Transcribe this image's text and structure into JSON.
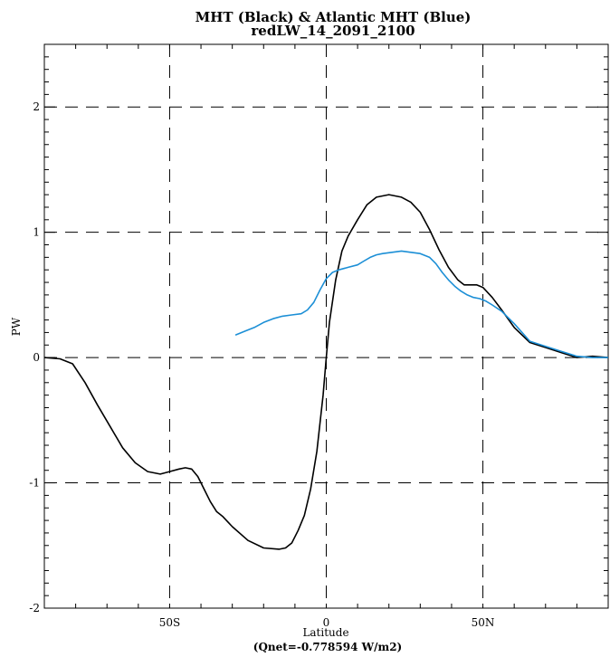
{
  "chart_data": {
    "type": "line",
    "title": "MHT (Black) & Atlantic MHT (Blue)",
    "subtitle": "redLW_14_2091_2100",
    "xlabel": "Latitude",
    "ylabel": "PW",
    "note": "(Qnet=-0.778594 W/m2)",
    "xlim": [
      -90,
      90
    ],
    "ylim": [
      -2,
      2.5
    ],
    "grid": true,
    "x_ticks": [
      {
        "value": -50,
        "label": "50S"
      },
      {
        "value": 0,
        "label": "0"
      },
      {
        "value": 50,
        "label": "50N"
      }
    ],
    "y_ticks": [
      {
        "value": -2,
        "label": "-2"
      },
      {
        "value": -1,
        "label": "-1"
      },
      {
        "value": 0,
        "label": "0"
      },
      {
        "value": 1,
        "label": "1"
      },
      {
        "value": 2,
        "label": "2"
      }
    ],
    "series": [
      {
        "color": "#000000",
        "x": [
          -90,
          -85,
          -81,
          -77,
          -73,
          -69,
          -65,
          -61,
          -57,
          -53,
          -50,
          -47,
          -45,
          -43,
          -41,
          -39,
          -37,
          -35,
          -33,
          -30,
          -25,
          -20,
          -15,
          -13,
          -11,
          -9,
          -7,
          -5,
          -3,
          -1,
          0,
          1,
          3,
          5,
          7,
          10,
          13,
          16,
          20,
          24,
          27,
          30,
          33,
          36,
          39,
          42,
          44,
          46,
          48,
          50,
          53,
          56,
          60,
          65,
          70,
          75,
          80,
          85,
          90
        ],
        "y": [
          0.0,
          -0.01,
          -0.05,
          -0.2,
          -0.38,
          -0.55,
          -0.72,
          -0.84,
          -0.91,
          -0.93,
          -0.91,
          -0.89,
          -0.88,
          -0.89,
          -0.95,
          -1.05,
          -1.15,
          -1.23,
          -1.27,
          -1.35,
          -1.46,
          -1.52,
          -1.53,
          -1.52,
          -1.48,
          -1.38,
          -1.26,
          -1.05,
          -0.75,
          -0.3,
          0.0,
          0.28,
          0.62,
          0.85,
          0.97,
          1.1,
          1.22,
          1.28,
          1.3,
          1.28,
          1.24,
          1.16,
          1.02,
          0.86,
          0.72,
          0.62,
          0.58,
          0.58,
          0.58,
          0.56,
          0.48,
          0.38,
          0.24,
          0.12,
          0.08,
          0.04,
          0.0,
          0.01,
          0.0
        ]
      },
      {
        "color": "#1c8fd6",
        "x": [
          -29,
          -26,
          -23,
          -20,
          -17,
          -14,
          -11,
          -8,
          -6,
          -4,
          -2,
          0,
          2,
          4,
          7,
          10,
          12,
          14,
          16,
          18,
          21,
          24,
          27,
          30,
          33,
          35,
          37,
          39,
          41,
          43,
          45,
          47,
          49,
          51,
          53,
          56,
          60,
          65,
          70,
          75,
          80,
          85,
          90
        ],
        "y": [
          0.18,
          0.21,
          0.24,
          0.28,
          0.31,
          0.33,
          0.34,
          0.35,
          0.38,
          0.44,
          0.54,
          0.63,
          0.68,
          0.7,
          0.72,
          0.74,
          0.77,
          0.8,
          0.82,
          0.83,
          0.84,
          0.85,
          0.84,
          0.83,
          0.8,
          0.75,
          0.68,
          0.62,
          0.57,
          0.53,
          0.5,
          0.48,
          0.47,
          0.45,
          0.42,
          0.37,
          0.27,
          0.13,
          0.09,
          0.05,
          0.01,
          0.0,
          0.0
        ]
      }
    ]
  }
}
